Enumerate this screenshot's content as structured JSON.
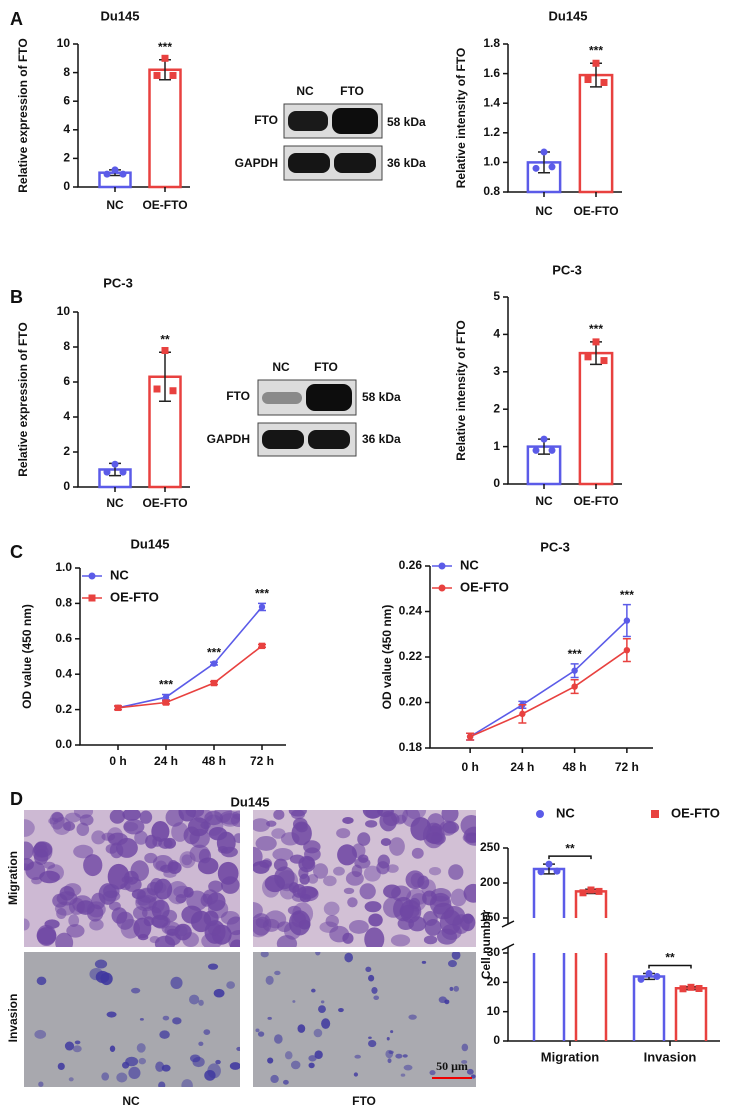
{
  "panels": [
    "A",
    "B",
    "C",
    "D"
  ],
  "blots": [
    {
      "lanes": [
        "NC",
        "FTO"
      ],
      "rows": [
        {
          "protein": "FTO",
          "size": "58 kDa"
        },
        {
          "protein": "GAPDH",
          "size": "36 kDa"
        }
      ]
    },
    {
      "lanes": [
        "NC",
        "FTO"
      ],
      "rows": [
        {
          "protein": "FTO",
          "size": "58 kDa"
        },
        {
          "protein": "GAPDH",
          "size": "36 kDa"
        }
      ]
    }
  ],
  "images": {
    "title": "Du145",
    "rows": [
      "Migration",
      "Invasion"
    ],
    "columns": [
      "NC",
      "FTO"
    ],
    "scale_bar": "50 μm"
  },
  "chart_data": [
    {
      "type": "bar",
      "title": "Du145",
      "y_label": "Relative expression of FTO",
      "categories": [
        "NC",
        "OE-FTO"
      ],
      "values": [
        1.0,
        8.2
      ],
      "errors": [
        0.2,
        0.7
      ],
      "points": [
        [
          1.2,
          0.9,
          0.9
        ],
        [
          9.0,
          7.8,
          7.8
        ]
      ],
      "colors": [
        "#5b5be8",
        "#e8413f"
      ],
      "markers": [
        "circle",
        "square"
      ],
      "ylim": [
        0,
        10
      ],
      "yticks": [
        0,
        2,
        4,
        6,
        8,
        10
      ],
      "annotation": "***"
    },
    {
      "type": "bar",
      "title": "Du145",
      "y_label": "Relative intensity of FTO",
      "categories": [
        "NC",
        "OE-FTO"
      ],
      "values": [
        1.0,
        1.59
      ],
      "errors": [
        0.07,
        0.08
      ],
      "points": [
        [
          1.07,
          0.96,
          0.97
        ],
        [
          1.67,
          1.56,
          1.54
        ]
      ],
      "colors": [
        "#5b5be8",
        "#e8413f"
      ],
      "markers": [
        "circle",
        "square"
      ],
      "ylim": [
        0.8,
        1.8
      ],
      "yticks": [
        0.8,
        {
          "value": 1.0,
          "label": "1.0"
        },
        1.2,
        1.4,
        1.6,
        1.8
      ],
      "annotation": "***"
    },
    {
      "type": "bar",
      "title": "PC-3",
      "y_label": "Relative expression of FTO",
      "categories": [
        "NC",
        "OE-FTO"
      ],
      "values": [
        1.0,
        6.3
      ],
      "errors": [
        0.35,
        1.4
      ],
      "points": [
        [
          1.3,
          0.85,
          0.85
        ],
        [
          7.8,
          5.6,
          5.5
        ]
      ],
      "colors": [
        "#5b5be8",
        "#e8413f"
      ],
      "markers": [
        "circle",
        "square"
      ],
      "ylim": [
        0,
        10
      ],
      "yticks": [
        0,
        2,
        4,
        6,
        8,
        10
      ],
      "annotation": "**"
    },
    {
      "type": "bar",
      "title": "PC-3",
      "y_label": "Relative intensity of FTO",
      "categories": [
        "NC",
        "OE-FTO"
      ],
      "values": [
        1.0,
        3.5
      ],
      "errors": [
        0.2,
        0.3
      ],
      "points": [
        [
          1.2,
          0.9,
          0.9
        ],
        [
          3.8,
          3.4,
          3.3
        ]
      ],
      "colors": [
        "#5b5be8",
        "#e8413f"
      ],
      "markers": [
        "circle",
        "square"
      ],
      "ylim": [
        0,
        5
      ],
      "yticks": [
        0,
        1,
        2,
        3,
        4,
        5
      ],
      "annotation": "***"
    },
    {
      "type": "line",
      "title": "Du145",
      "y_label": "OD value (450 nm)",
      "categories": [
        "0 h",
        "24 h",
        "48 h",
        "72 h"
      ],
      "series": [
        {
          "name": "NC",
          "color": "#5b5be8",
          "marker": "circle",
          "values": [
            0.21,
            0.27,
            0.46,
            0.78
          ],
          "errors": [
            0.01,
            0.015,
            0.008,
            0.02
          ]
        },
        {
          "name": "OE-FTO",
          "color": "#e8413f",
          "marker": "square",
          "values": [
            0.21,
            0.24,
            0.35,
            0.56
          ],
          "errors": [
            0.01,
            0.008,
            0.008,
            0.008
          ]
        }
      ],
      "ylim": [
        0,
        1.0
      ],
      "yticks": [
        {
          "value": 0,
          "label": "0.0"
        },
        0.2,
        0.4,
        0.6,
        0.8,
        {
          "value": 1.0,
          "label": "1.0"
        }
      ],
      "annotations": [
        null,
        "***",
        "***",
        "***"
      ],
      "legend": "upper left"
    },
    {
      "type": "line",
      "title": "PC-3",
      "y_label": "OD value (450 nm)",
      "categories": [
        "0 h",
        "24 h",
        "48 h",
        "72 h"
      ],
      "series": [
        {
          "name": "NC",
          "color": "#5b5be8",
          "marker": "circle",
          "values": [
            0.185,
            0.199,
            0.214,
            0.236
          ],
          "errors": [
            0.0015,
            0.0015,
            0.003,
            0.007
          ]
        },
        {
          "name": "OE-FTO",
          "color": "#e8413f",
          "marker": "circle",
          "values": [
            0.185,
            0.195,
            0.207,
            0.223
          ],
          "errors": [
            0.0015,
            0.004,
            0.003,
            0.005
          ]
        }
      ],
      "ylim": [
        0.18,
        0.26
      ],
      "yticks": [
        0.18,
        {
          "value": 0.2,
          "label": "0.20"
        },
        0.22,
        0.24,
        0.26
      ],
      "annotations": [
        null,
        null,
        "***",
        "***"
      ],
      "legend": "upper left"
    },
    {
      "type": "bar",
      "y_label": "Cell number",
      "categories": [
        "Migration",
        "Invasion"
      ],
      "series": [
        {
          "name": "NC",
          "color": "#5b5be8",
          "marker": "circle",
          "values": [
            220,
            22
          ],
          "errors": [
            7,
            1
          ],
          "points": [
            [
              227,
              216,
              217
            ],
            [
              23,
              21,
              22
            ]
          ]
        },
        {
          "name": "OE-FTO",
          "color": "#e8413f",
          "marker": "square",
          "values": [
            188,
            18
          ],
          "errors": [
            3,
            0.5
          ],
          "points": [
            [
              190,
              186,
              188
            ],
            [
              18.3,
              17.8,
              17.9
            ]
          ]
        }
      ],
      "ylim": [
        0,
        250
      ],
      "ybreak": [
        30,
        150
      ],
      "yticks": [
        0,
        10,
        20,
        30,
        150,
        200,
        250
      ],
      "annotations": [
        "**",
        "**"
      ],
      "legend": "top"
    }
  ]
}
